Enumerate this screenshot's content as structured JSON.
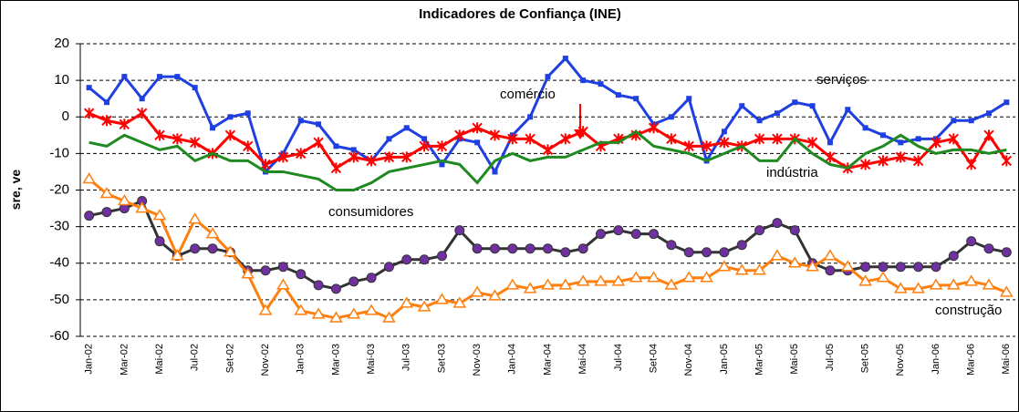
{
  "chart_data": {
    "type": "line",
    "title": "Indicadores de Confiança (INE)",
    "y_label": "sre, ve",
    "categories": [
      "Jan-02",
      null,
      "Mar-02",
      null,
      "Mai-02",
      null,
      "Jul-02",
      null,
      "Set-02",
      null,
      "Nov-02",
      null,
      "Jan-03",
      null,
      "Mar-03",
      null,
      "Mai-03",
      null,
      "Jul-03",
      null,
      "Set-03",
      null,
      "Nov-03",
      null,
      "Jan-04",
      null,
      "Mar-04",
      null,
      "Mai-04",
      null,
      "Jul-04",
      null,
      "Set-04",
      null,
      "Nov-04",
      null,
      "Jan-05",
      null,
      "Mar-05",
      null,
      "Mai-05",
      null,
      "Jul-05",
      null,
      "Set-05",
      null,
      "Nov-05",
      null,
      "Jan-06",
      null,
      "Mar-06",
      null,
      "Mai-06"
    ],
    "series": [
      {
        "name": "serviços",
        "color": "#1f3fe0",
        "marker": "square",
        "values": [
          8,
          4,
          11,
          5,
          11,
          11,
          8,
          -3,
          0,
          1,
          -15,
          -10,
          -1,
          -2,
          -8,
          -9,
          -12,
          -6,
          -3,
          -6,
          -13,
          -6,
          -7,
          -15,
          -5,
          0,
          11,
          16,
          10,
          9,
          6,
          5,
          -2,
          0,
          5,
          -12,
          -4,
          3,
          -1,
          1,
          4,
          3,
          -7,
          2,
          -3,
          -5,
          -7,
          -6,
          -6,
          -1,
          -1,
          1,
          4
        ]
      },
      {
        "name": "comércio",
        "color": "#ff0000",
        "marker": "star",
        "values": [
          1,
          -1,
          -2,
          1,
          -5,
          -6,
          -7,
          -10,
          -5,
          -8,
          -13,
          -11,
          -10,
          -7,
          -14,
          -11,
          -12,
          -11,
          -11,
          -8,
          -8,
          -5,
          -3,
          -5,
          -6,
          -6,
          -9,
          -6,
          -4,
          -8,
          -6,
          -5,
          -3,
          -6,
          -8,
          -8,
          -7,
          -8,
          -6,
          -6,
          -6,
          -7,
          -11,
          -14,
          -13,
          -12,
          -11,
          -12,
          -7,
          -6,
          -13,
          -5,
          -12
        ]
      },
      {
        "name": "indústria",
        "color": "#1f8a1f",
        "marker": "none",
        "values": [
          -7,
          -8,
          -5,
          -7,
          -9,
          -8,
          -12,
          -10,
          -12,
          -12,
          -15,
          -15,
          -16,
          -17,
          -20,
          -20,
          -18,
          -15,
          -14,
          -13,
          -12,
          -13,
          -18,
          -12,
          -10,
          -12,
          -11,
          -11,
          -9,
          -7,
          -7,
          -4,
          -8,
          -9,
          -10,
          -12,
          -10,
          -8,
          -12,
          -12,
          -6,
          -10,
          -13,
          -14,
          -10,
          -8,
          -5,
          -8,
          -10,
          -9,
          -9,
          -10,
          -9
        ]
      },
      {
        "name": "consumidores",
        "color": "#333333",
        "marker": "circle",
        "marker_color": "#7030a0",
        "values": [
          -27,
          -26,
          -25,
          -23,
          -34,
          -38,
          -36,
          -36,
          -37,
          -42,
          -42,
          -41,
          -43,
          -46,
          -47,
          -45,
          -44,
          -41,
          -39,
          -39,
          -38,
          -31,
          -36,
          -36,
          -36,
          -36,
          -36,
          -37,
          -36,
          -32,
          -31,
          -32,
          -32,
          -35,
          -37,
          -37,
          -37,
          -35,
          -31,
          -29,
          -31,
          -40,
          -42,
          -42,
          -41,
          -41,
          -41,
          -41,
          -41,
          -38,
          -34,
          -36,
          -37
        ]
      },
      {
        "name": "construção",
        "color": "#ff7f0e",
        "marker": "triangle",
        "values": [
          -17,
          -21,
          -23,
          -25,
          -27,
          -38,
          -28,
          -32,
          -37,
          -43,
          -53,
          -46,
          -53,
          -54,
          -55,
          -54,
          -53,
          -55,
          -51,
          -52,
          -50,
          -51,
          -48,
          -49,
          -46,
          -47,
          -46,
          -46,
          -45,
          -45,
          -45,
          -44,
          -44,
          -46,
          -44,
          -44,
          -41,
          -42,
          -42,
          -38,
          -40,
          -41,
          -38,
          -41,
          -45,
          -44,
          -47,
          -47,
          -46,
          -46,
          -45,
          -46,
          -48
        ]
      }
    ],
    "ylim": [
      -60,
      20
    ],
    "yticks": [
      -60,
      -50,
      -40,
      -30,
      -20,
      -10,
      0,
      10,
      20
    ],
    "grid": true
  }
}
